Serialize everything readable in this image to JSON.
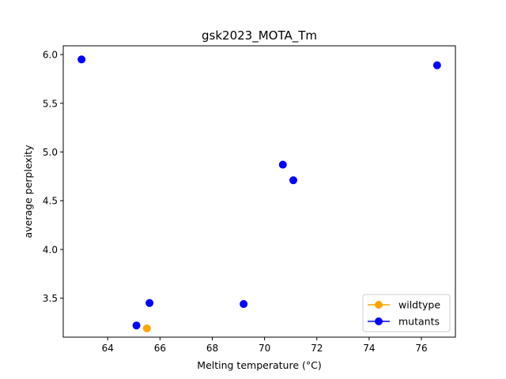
{
  "chart_data": {
    "type": "scatter",
    "title": "gsk2023_MOTA_Tm",
    "xlabel": "Melting temperature (°C)",
    "ylabel": "average perplexity",
    "xlim": [
      62.3,
      77.3
    ],
    "ylim": [
      3.1,
      6.09
    ],
    "xticks": [
      64,
      66,
      68,
      70,
      72,
      74,
      76
    ],
    "yticks": [
      3.5,
      4.0,
      4.5,
      5.0,
      5.5,
      6.0
    ],
    "xtick_labels": [
      "64",
      "66",
      "68",
      "70",
      "72",
      "74",
      "76"
    ],
    "ytick_labels": [
      "3.5",
      "4.0",
      "4.5",
      "5.0",
      "5.5",
      "6.0"
    ],
    "grid": false,
    "legend_position": "bottom-right",
    "series": [
      {
        "name": "wildtype",
        "color": "#ffa500",
        "points": [
          {
            "x": 65.5,
            "y": 3.19
          }
        ]
      },
      {
        "name": "mutants",
        "color": "#0000ff",
        "points": [
          {
            "x": 63.0,
            "y": 5.95
          },
          {
            "x": 76.6,
            "y": 5.89
          },
          {
            "x": 70.7,
            "y": 4.87
          },
          {
            "x": 71.1,
            "y": 4.71
          },
          {
            "x": 65.6,
            "y": 3.45
          },
          {
            "x": 69.2,
            "y": 3.44
          },
          {
            "x": 65.1,
            "y": 3.22
          }
        ]
      }
    ]
  }
}
